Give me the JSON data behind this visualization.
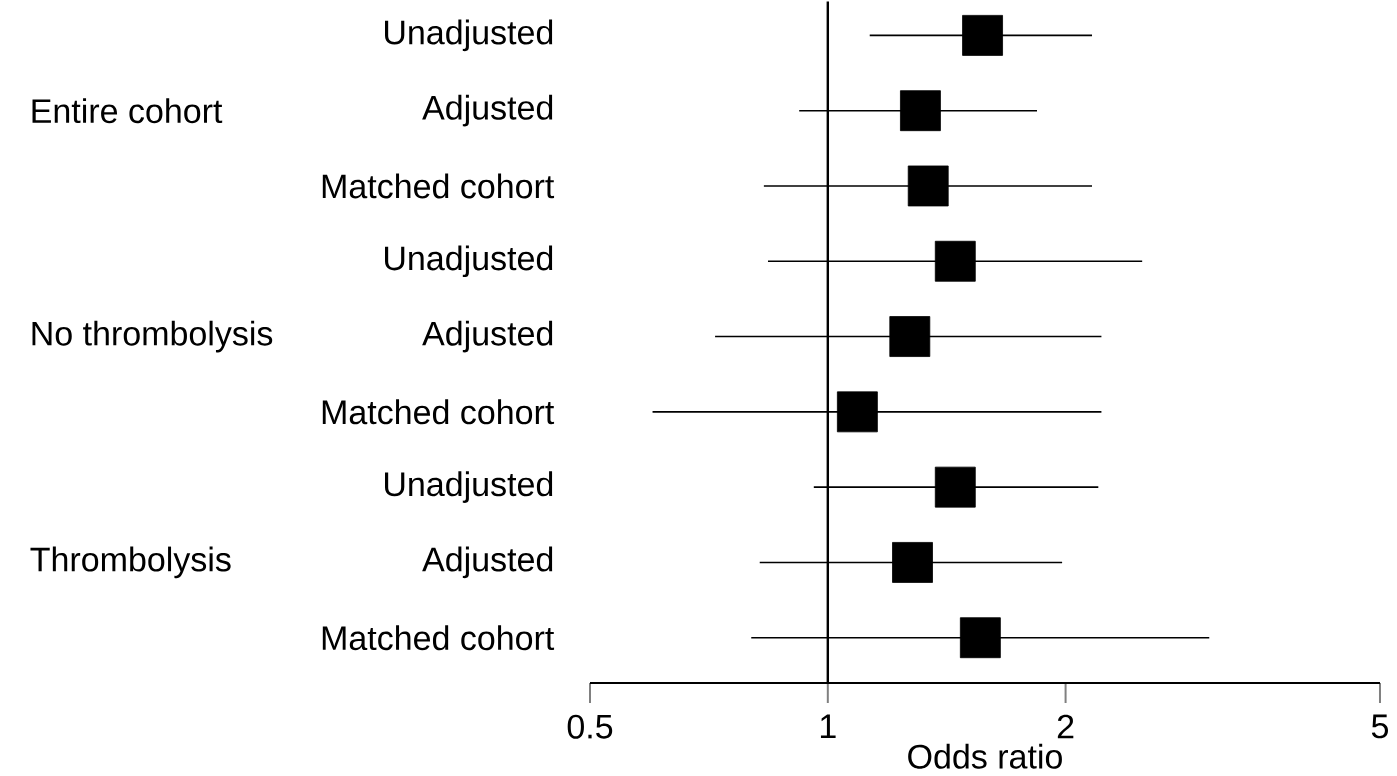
{
  "chart_data": {
    "type": "scatter",
    "orientation": "horizontal",
    "xlabel": "Odds ratio",
    "categories": [
      "Unadjusted",
      "Adjusted",
      "Matched cohort",
      "Unadjusted",
      "Adjusted",
      "Matched cohort",
      "Unadjusted",
      "Adjusted",
      "Matched cohort"
    ],
    "values": [
      1.57,
      1.31,
      1.34,
      1.45,
      1.27,
      1.09,
      1.45,
      1.28,
      1.56
    ],
    "errors": [
      [
        1.13,
        2.16
      ],
      [
        0.92,
        1.84
      ],
      [
        0.83,
        2.16
      ],
      [
        0.84,
        2.5
      ],
      [
        0.72,
        2.22
      ],
      [
        0.6,
        2.22
      ],
      [
        0.96,
        2.2
      ],
      [
        0.82,
        1.98
      ],
      [
        0.8,
        3.04
      ]
    ],
    "color": "#000000",
    "marker": "square",
    "log": "x",
    "grid": false,
    "xlim": [
      0.5,
      5
    ],
    "xticks": [
      0.5,
      1,
      2,
      5
    ],
    "ref_lines": [
      {
        "axis": "x",
        "value": 1,
        "color": "#000000"
      }
    ],
    "annotations": [
      "Entire cohort",
      "No thrombolysis",
      "Thrombolysis"
    ]
  }
}
